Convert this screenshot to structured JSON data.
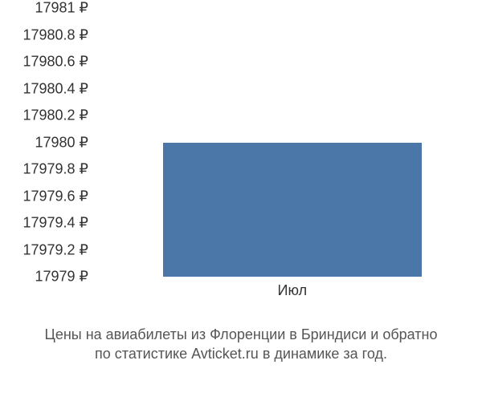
{
  "chart": {
    "type": "bar",
    "y_ticks": [
      {
        "label": "17981 ₽",
        "value": 17981
      },
      {
        "label": "17980.8 ₽",
        "value": 17980.8
      },
      {
        "label": "17980.6 ₽",
        "value": 17980.6
      },
      {
        "label": "17980.4 ₽",
        "value": 17980.4
      },
      {
        "label": "17980.2 ₽",
        "value": 17980.2
      },
      {
        "label": "17980 ₽",
        "value": 17980
      },
      {
        "label": "17979.8 ₽",
        "value": 17979.8
      },
      {
        "label": "17979.6 ₽",
        "value": 17979.6
      },
      {
        "label": "17979.4 ₽",
        "value": 17979.4
      },
      {
        "label": "17979.2 ₽",
        "value": 17979.2
      },
      {
        "label": "17979 ₽",
        "value": 17979
      }
    ],
    "ylim": [
      17979,
      17981
    ],
    "x_categories": [
      "Июл"
    ],
    "values": [
      17980
    ],
    "bar_color": "#4a76a8",
    "bar_left_pct": 18,
    "bar_width_pct": 70,
    "background_color": "#ffffff",
    "tick_fontsize": 18,
    "tick_color": "#333333"
  },
  "caption": {
    "line1": "Цены на авиабилеты из Флоренции в Бриндиси и обратно",
    "line2": "по статистике Avticket.ru в динамике за год.",
    "fontsize": 18,
    "color": "#555555"
  }
}
